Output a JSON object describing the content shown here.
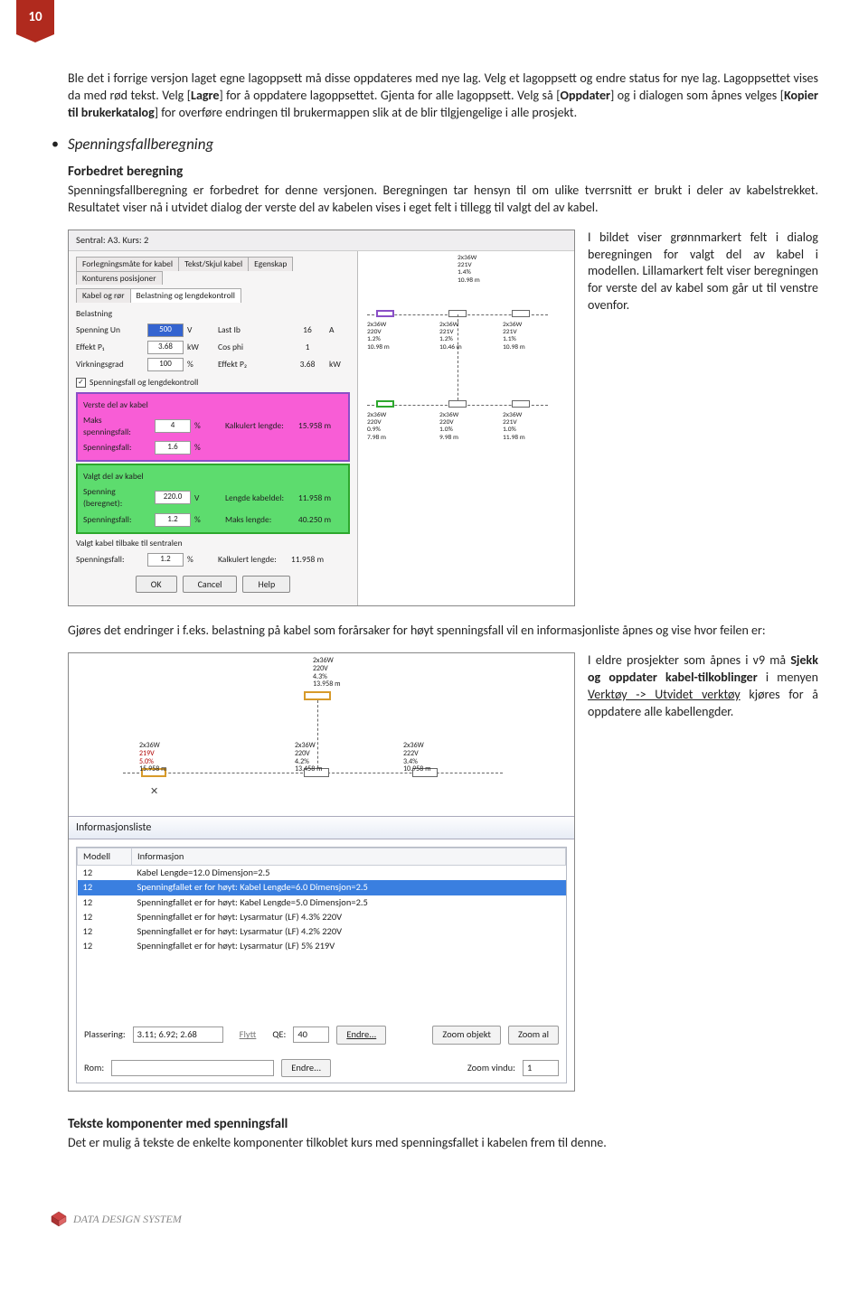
{
  "page_number": "10",
  "para1_a": "Ble det i forrige versjon laget egne lagoppsett må disse oppdateres med nye lag. Velg et lagoppsett og endre status for nye lag. Lagoppsettet vises da med rød tekst. Velg [",
  "para1_b": "Lagre",
  "para1_c": "] for å oppdatere lagoppsettet. Gjenta for alle lagoppsett. Velg så [",
  "para1_d": "Oppdater",
  "para1_e": "] og i dialogen som åpnes velges [",
  "para1_f": "Kopier til brukerkatalog",
  "para1_g": "] for overføre endringen til brukermappen slik at de blir tilgjengelige i alle prosjekt.",
  "bullet_heading": "Spenningsfallberegning",
  "subhead1": "Forbedret beregning",
  "para2": "Spenningsfallberegning er forbedret for denne versjonen. Beregningen tar hensyn til om ulike tverrsnitt er brukt i deler av kabelstrekket. Resultatet viser nå i utvidet dialog der verste del av kabelen vises i eget felt i tillegg til valgt del av kabel.",
  "caption1": "I bildet viser grønnmarkert felt i dialog beregningen for valgt del av kabel i modellen. Lillamarkert felt viser beregningen for verste del av kabel som går ut til venstre ovenfor.",
  "para3": "Gjøres det endringer i f.eks. belastning på kabel som forårsaker for høyt spenningsfall vil en informasjonliste åpnes og vise hvor feilen er:",
  "caption2_a": "I eldre prosjekter som åpnes i v9 må ",
  "caption2_b": "Sjekk og oppdater kabel-tilkoblinger",
  "caption2_c": " i menyen ",
  "caption2_d": "Verktøy -> Utvidet verktøy",
  "caption2_e": " kjøres for å oppdatere alle kabellengder.",
  "subhead2": "Tekste komponenter med spenningsfall",
  "para4": "Det er mulig å tekste de enkelte komponenter tilkoblet kurs med spenningsfallet i kabelen frem til denne.",
  "footer": "DATA DESIGN SYSTEM",
  "dlg": {
    "title": "Sentral: A3. Kurs: 2",
    "tabs_row1": [
      "Forlegningsmåte for kabel",
      "Tekst/Skjul kabel",
      "Egenskap",
      "Konturens posisjoner"
    ],
    "tabs_row2": [
      "Kabel og rør",
      "Belastning og lengdekontroll"
    ],
    "group_belast": "Belastning",
    "rows": [
      {
        "l": "Spenning Un",
        "v": "500",
        "u": "V",
        "l2": "Last Ib",
        "v2": "16",
        "u2": "A",
        "blue": true
      },
      {
        "l": "Effekt P₁",
        "v": "3.68",
        "u": "kW",
        "l2": "Cos phi",
        "v2": "1",
        "u2": ""
      },
      {
        "l": "Virkningsgrad",
        "v": "100",
        "u": "%",
        "l2": "Effekt P₂",
        "v2": "3.68",
        "u2": "kW"
      }
    ],
    "chk_label": "Spenningsfall og lengdekontroll",
    "panel_verste": "Verste del av kabel",
    "maks_sp": "Maks spenningsfall:",
    "maks_sp_v": "4",
    "maks_sp_u": "%",
    "kalk_len": "Kalkulert lengde:",
    "kalk_len_v": "15.958 m",
    "sp_fall": "Spenningsfall:",
    "sp_fall_v": "1.6",
    "sp_fall_u": "%",
    "panel_valgt": "Valgt del av kabel",
    "sp_ber": "Spenning (beregnet):",
    "sp_ber_v": "220.0",
    "sp_ber_u": "V",
    "len_kd": "Lengde kabeldel:",
    "len_kd_v": "11.958 m",
    "sp_fall2": "Spenningsfall:",
    "sp_fall2_v": "1.2",
    "sp_fall2_u": "%",
    "maks_len": "Maks lengde:",
    "maks_len_v": "40.250 m",
    "panel_tilbake": "Valgt kabel tilbake til sentralen",
    "sp_fall3": "Spenningsfall:",
    "sp_fall3_v": "1.2",
    "sp_fall3_u": "%",
    "kalk_len2": "Kalkulert lengde:",
    "kalk_len2_v": "11.958 m",
    "btn_ok": "OK",
    "btn_cancel": "Cancel",
    "btn_help": "Help",
    "rlabels": {
      "a": "2x36W\n221V\n1.4%\n10.98 m",
      "b": "2x36W\n220V\n1.2%\n10.98 m",
      "c": "2x36W\n221V\n1.2%\n10.46 m",
      "d": "2x36W\n221V\n1.1%\n10.98 m",
      "e": "2x36W\n220V\n0.9%\n7.98 m",
      "f": "2x36W\n220V\n1.0%\n9.98 m",
      "g": "2x36W\n221V\n1.0%\n11.98 m"
    }
  },
  "s2": {
    "top": "2x36W\n220V\n4.3%\n13.958 m",
    "l1": "2x36W",
    "l1b": "219V",
    "l1c": "5.0%",
    "l1d": "15.958 m",
    "l2": "2x36W\n220V\n4.2%\n13.458 m",
    "l3": "2x36W\n222V\n3.4%\n10.958 m",
    "cross": "✕",
    "info_title": "Informasjonsliste",
    "col1": "Modell",
    "col2": "Informasjon",
    "rows": [
      {
        "m": "12",
        "t": "Kabel Lengde=12.0  Dimensjon=2.5"
      },
      {
        "m": "12",
        "t": "Spenningfallet er for høyt: Kabel Lengde=6.0   Dimensjon=2.5",
        "sel": true
      },
      {
        "m": "12",
        "t": "Spenningfallet er for høyt: Kabel Lengde=5.0   Dimensjon=2.5"
      },
      {
        "m": "12",
        "t": "Spenningfallet er for høyt: Lysarmatur (LF) 4.3% 220V"
      },
      {
        "m": "12",
        "t": "Spenningfallet er for høyt: Lysarmatur (LF) 4.2% 220V"
      },
      {
        "m": "12",
        "t": "Spenningfallet er for høyt: Lysarmatur (LF) 5% 219V"
      }
    ],
    "plass": "Plassering:",
    "plass_v": "3.11; 6.92; 2.68",
    "flytt": "Flytt",
    "qe": "QE:",
    "qe_v": "40",
    "endre": "Endre...",
    "zoom_obj": "Zoom objekt",
    "zoom_al": "Zoom al",
    "rom": "Rom:",
    "zoom_v": "Zoom vindu:",
    "zoom_vv": "1"
  }
}
